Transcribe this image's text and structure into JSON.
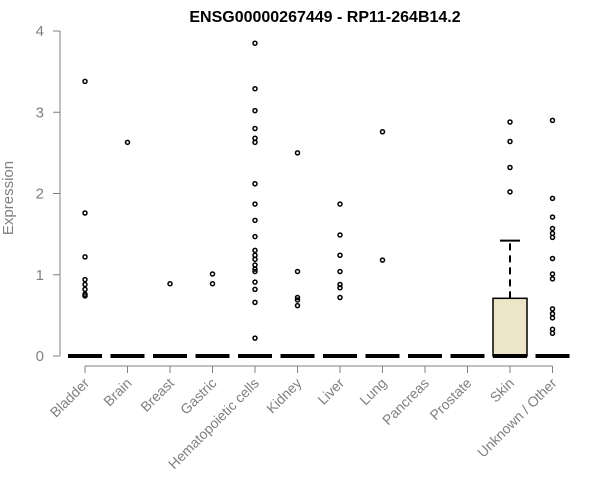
{
  "chart_data": {
    "type": "box",
    "title": "ENSG00000267449 - RP11-264B14.2",
    "xlabel": "",
    "ylabel": "Expression",
    "ylim": [
      0,
      4
    ],
    "yticks": [
      "0",
      "1",
      "2",
      "3",
      "4"
    ],
    "grid": false,
    "categories": [
      "Bladder",
      "Brain",
      "Breast",
      "Gastric",
      "Hematopoietic cells",
      "Kidney",
      "Liver",
      "Lung",
      "Pancreas",
      "Prostate",
      "Skin",
      "Unknown / Other"
    ],
    "colors": {
      "box_fill": "#ede5c8",
      "outline": "#000000",
      "axis": "#808080",
      "tick_text": "#808080"
    },
    "boxes": [
      {
        "category": "Bladder",
        "q1": 0,
        "median": 0,
        "q3": 0,
        "whisker_low": 0,
        "whisker_high": 0,
        "outliers": [
          3.38,
          1.76,
          1.22,
          0.94,
          0.88,
          0.82,
          0.76,
          0.74
        ]
      },
      {
        "category": "Brain",
        "q1": 0,
        "median": 0,
        "q3": 0,
        "whisker_low": 0,
        "whisker_high": 0,
        "outliers": [
          2.63
        ]
      },
      {
        "category": "Breast",
        "q1": 0,
        "median": 0,
        "q3": 0,
        "whisker_low": 0,
        "whisker_high": 0,
        "outliers": [
          0.89
        ]
      },
      {
        "category": "Gastric",
        "q1": 0,
        "median": 0,
        "q3": 0,
        "whisker_low": 0,
        "whisker_high": 0,
        "outliers": [
          1.01,
          0.89
        ]
      },
      {
        "category": "Hematopoietic cells",
        "q1": 0,
        "median": 0,
        "q3": 0,
        "whisker_low": 0,
        "whisker_high": 0,
        "outliers": [
          3.85,
          3.29,
          3.02,
          2.8,
          2.68,
          2.63,
          2.12,
          1.87,
          1.67,
          1.47,
          1.3,
          1.24,
          1.19,
          1.12,
          1.07,
          1.04,
          0.91,
          0.82,
          0.66,
          0.22
        ]
      },
      {
        "category": "Kidney",
        "q1": 0,
        "median": 0,
        "q3": 0,
        "whisker_low": 0,
        "whisker_high": 0,
        "outliers": [
          2.5,
          1.04,
          0.72,
          0.69,
          0.62
        ]
      },
      {
        "category": "Liver",
        "q1": 0,
        "median": 0,
        "q3": 0,
        "whisker_low": 0,
        "whisker_high": 0,
        "outliers": [
          1.87,
          1.49,
          1.24,
          1.04,
          0.88,
          0.84,
          0.72
        ]
      },
      {
        "category": "Lung",
        "q1": 0,
        "median": 0,
        "q3": 0,
        "whisker_low": 0,
        "whisker_high": 0,
        "outliers": [
          2.76,
          1.18
        ]
      },
      {
        "category": "Pancreas",
        "q1": 0,
        "median": 0,
        "q3": 0,
        "whisker_low": 0,
        "whisker_high": 0,
        "outliers": []
      },
      {
        "category": "Prostate",
        "q1": 0,
        "median": 0,
        "q3": 0,
        "whisker_low": 0,
        "whisker_high": 0,
        "outliers": []
      },
      {
        "category": "Skin",
        "q1": 0,
        "median": 0,
        "q3": 0.71,
        "whisker_low": 0,
        "whisker_high": 1.42,
        "outliers": [
          2.88,
          2.64,
          2.32,
          2.02
        ]
      },
      {
        "category": "Unknown / Other",
        "q1": 0,
        "median": 0,
        "q3": 0,
        "whisker_low": 0,
        "whisker_high": 0,
        "outliers": [
          2.9,
          1.94,
          1.71,
          1.57,
          1.51,
          1.46,
          1.2,
          1.01,
          0.95,
          0.58,
          0.52,
          0.47,
          0.33,
          0.28
        ]
      }
    ]
  }
}
